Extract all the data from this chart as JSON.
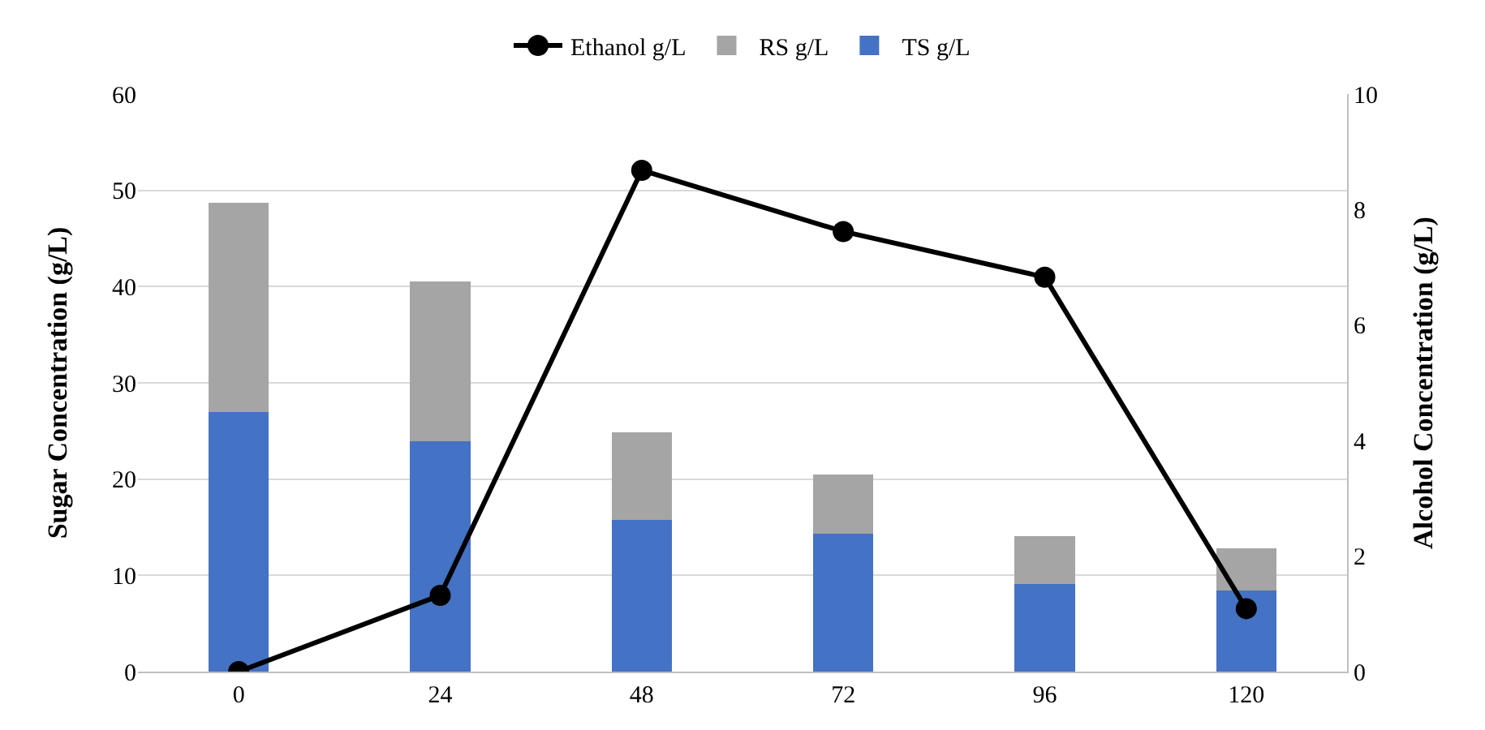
{
  "chart_data": {
    "type": "bar",
    "stacked": true,
    "categories": [
      "0",
      "24",
      "48",
      "72",
      "96",
      "120"
    ],
    "ylabel": "Sugar Concentration (g/L)",
    "y2label": "Alcohol Concentration (g/L)",
    "ylim": [
      0,
      60
    ],
    "yticks": [
      0,
      10,
      20,
      30,
      40,
      50,
      60
    ],
    "y2lim": [
      0,
      10
    ],
    "y2ticks": [
      0,
      2,
      4,
      6,
      8,
      10
    ],
    "grid": "y",
    "legend": "top",
    "marker": "circle",
    "line_style": "solid",
    "series": [
      {
        "name": "TS g/L",
        "color": "#4472c4",
        "values": [
          27,
          23.9,
          15.8,
          14.3,
          9.1,
          8.4
        ]
      },
      {
        "name": "RS g/L",
        "color": "#a5a5a5",
        "values": [
          21.7,
          16.6,
          9.1,
          6.2,
          5.0,
          4.4
        ]
      },
      {
        "name": "Ethanol g/L",
        "type": "line",
        "axis": "y2",
        "color": "#000000",
        "values": [
          0,
          1.32,
          8.68,
          7.62,
          6.83,
          1.09
        ]
      }
    ]
  }
}
